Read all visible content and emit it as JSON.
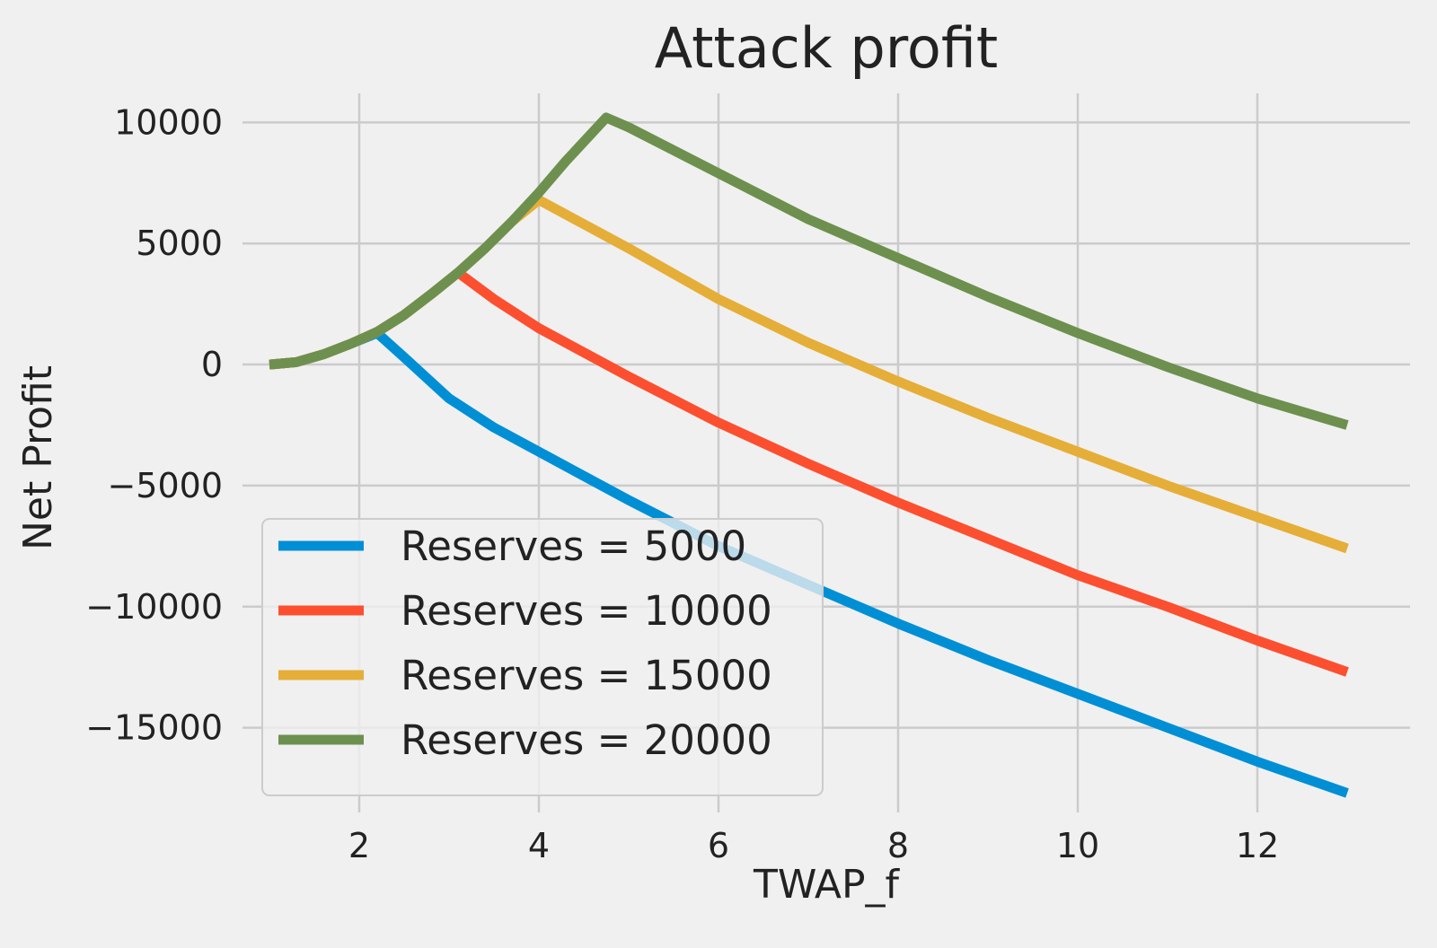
{
  "chart_data": {
    "type": "line",
    "title": "Attack profit",
    "xlabel": "TWAP_f",
    "ylabel": "Net Profit",
    "xlim": [
      0.7,
      13.7
    ],
    "ylim": [
      -18500,
      11200
    ],
    "x_ticks": [
      2,
      4,
      6,
      8,
      10,
      12
    ],
    "y_ticks": [
      10000,
      5000,
      0,
      -5000,
      -10000,
      -15000
    ],
    "x_tick_labels": [
      "2",
      "4",
      "6",
      "8",
      "10",
      "12"
    ],
    "y_tick_labels": [
      "10000",
      "5000",
      "0",
      "−5000",
      "−10000",
      "−15000"
    ],
    "grid": true,
    "legend_position": "lower-left",
    "series": [
      {
        "name": "Reserves = 5000",
        "color": "#008fd5",
        "x": [
          1.0,
          1.3,
          1.6,
          1.9,
          2.2,
          2.5,
          3.0,
          3.5,
          4.0,
          5.0,
          6.0,
          7.0,
          8.0,
          9.0,
          10.0,
          11.0,
          12.0,
          13.0
        ],
        "y": [
          0,
          100,
          420,
          850,
          1300,
          300,
          -1400,
          -2600,
          -3600,
          -5600,
          -7500,
          -9100,
          -10700,
          -12200,
          -13600,
          -15000,
          -16400,
          -17700
        ]
      },
      {
        "name": "Reserves = 10000",
        "color": "#fc4f30",
        "x": [
          1.0,
          1.3,
          1.6,
          1.9,
          2.2,
          2.5,
          2.8,
          3.1,
          3.5,
          4.0,
          5.0,
          6.0,
          7.0,
          8.0,
          9.0,
          10.0,
          11.0,
          12.0,
          13.0
        ],
        "y": [
          0,
          100,
          420,
          850,
          1350,
          2050,
          2900,
          3800,
          2700,
          1500,
          -500,
          -2400,
          -4100,
          -5700,
          -7200,
          -8700,
          -10000,
          -11400,
          -12700
        ]
      },
      {
        "name": "Reserves = 15000",
        "color": "#e5ae38",
        "x": [
          1.0,
          1.3,
          1.6,
          1.9,
          2.2,
          2.5,
          2.8,
          3.1,
          3.4,
          3.7,
          4.0,
          5.0,
          6.0,
          7.0,
          8.0,
          9.0,
          10.0,
          11.0,
          12.0,
          13.0
        ],
        "y": [
          0,
          100,
          420,
          850,
          1350,
          2050,
          2900,
          3800,
          4800,
          5900,
          6800,
          4800,
          2700,
          900,
          -700,
          -2200,
          -3600,
          -5000,
          -6300,
          -7600
        ]
      },
      {
        "name": "Reserves = 20000",
        "color": "#6d904f",
        "x": [
          1.0,
          1.3,
          1.6,
          1.9,
          2.2,
          2.5,
          2.8,
          3.1,
          3.4,
          3.7,
          4.0,
          4.3,
          4.75,
          5.0,
          6.0,
          7.0,
          8.0,
          9.0,
          10.0,
          11.0,
          12.0,
          13.0
        ],
        "y": [
          0,
          100,
          420,
          850,
          1350,
          2050,
          2900,
          3800,
          4800,
          5900,
          7100,
          8400,
          10200,
          9800,
          7900,
          6000,
          4400,
          2800,
          1300,
          -100,
          -1400,
          -2500
        ]
      }
    ]
  }
}
